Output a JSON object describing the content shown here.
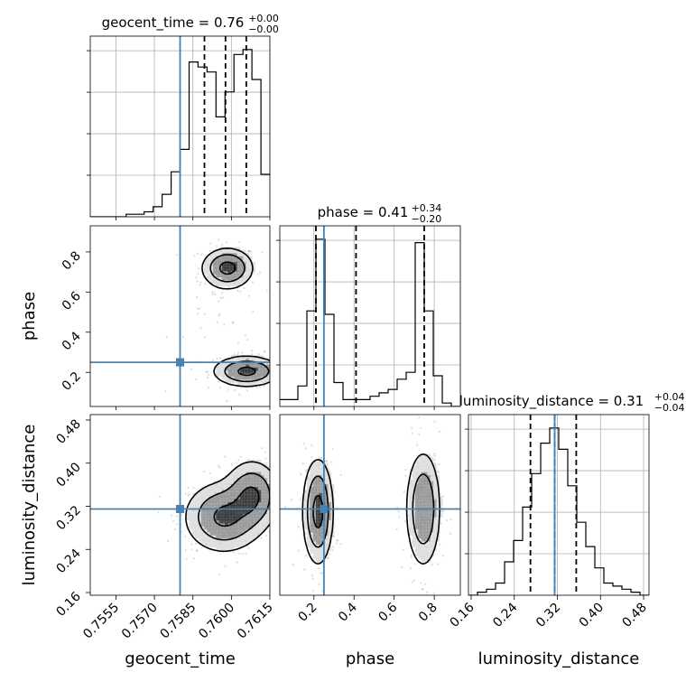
{
  "chart_data": {
    "type": "corner",
    "truth_color": "#4682b4",
    "contour_color": "#000000",
    "scatter_color": "#808080",
    "parameters": [
      {
        "name": "geocent_time",
        "range": [
          0.7545,
          0.7615
        ],
        "ticks": [
          "0.7555",
          "0.7570",
          "0.7585",
          "0.7600",
          "0.7615"
        ],
        "tick_values": [
          0.7555,
          0.757,
          0.7585,
          0.76,
          0.7615
        ],
        "truth": 0.758,
        "quantiles": [
          0.75895,
          0.75977,
          0.76058
        ]
      },
      {
        "name": "phase",
        "range": [
          0.03,
          0.93
        ],
        "ticks": [
          "0.2",
          "0.4",
          "0.6",
          "0.8"
        ],
        "tick_values": [
          0.2,
          0.4,
          0.6,
          0.8
        ],
        "truth": 0.25,
        "quantiles": [
          0.21,
          0.41,
          0.75
        ]
      },
      {
        "name": "luminosity_distance",
        "range": [
          0.155,
          0.49
        ],
        "ticks": [
          "0.16",
          "0.24",
          "0.32",
          "0.40",
          "0.48"
        ],
        "tick_values": [
          0.16,
          0.24,
          0.32,
          0.4,
          0.48
        ],
        "truth": 0.315,
        "quantiles": [
          0.27,
          0.315,
          0.355
        ]
      }
    ],
    "titles": {
      "geocent_time": {
        "label": "geocent_time = 0.76",
        "plus": "+0.00",
        "minus": "−0.00"
      },
      "phase": {
        "label": "phase = 0.41",
        "plus": "+0.34",
        "minus": "−0.20"
      },
      "luminosity_distance": {
        "label": "luminosity_distance = 0.31",
        "plus": "+0.04",
        "minus": "−0.04"
      }
    },
    "histograms": {
      "geocent_time": {
        "edges": [
          0.7545,
          0.75485,
          0.7552,
          0.75555,
          0.7559,
          0.75625,
          0.7566,
          0.75695,
          0.7573,
          0.75765,
          0.758,
          0.75835,
          0.7587,
          0.75905,
          0.7594,
          0.75975,
          0.7601,
          0.76045,
          0.7608,
          0.76115,
          0.7615
        ],
        "counts": [
          0,
          0,
          0,
          0,
          1,
          1,
          2,
          4,
          9,
          18,
          27,
          62,
          60,
          58,
          40,
          50,
          65,
          67,
          55,
          17
        ]
      },
      "phase": {
        "edges": [
          0.03,
          0.075,
          0.12,
          0.165,
          0.21,
          0.255,
          0.3,
          0.345,
          0.39,
          0.435,
          0.48,
          0.525,
          0.57,
          0.615,
          0.66,
          0.705,
          0.75,
          0.795,
          0.84,
          0.885,
          0.93
        ],
        "counts": [
          2,
          2,
          6,
          28,
          49,
          27,
          7,
          2,
          2,
          2,
          3,
          4,
          5,
          8,
          10,
          48,
          28,
          9,
          1,
          0
        ]
      },
      "luminosity_distance": {
        "edges": [
          0.155,
          0.17175,
          0.1885,
          0.20525,
          0.222,
          0.23875,
          0.2555,
          0.27225,
          0.289,
          0.30575,
          0.3225,
          0.33925,
          0.356,
          0.37275,
          0.3895,
          0.40625,
          0.423,
          0.43975,
          0.4565,
          0.47325,
          0.49
        ],
        "counts": [
          0,
          1,
          2,
          4,
          11,
          18,
          29,
          40,
          50,
          55,
          48,
          36,
          24,
          16,
          9,
          4,
          3,
          2,
          1,
          0
        ]
      }
    },
    "densities": {
      "geocent_time__phase": {
        "clusters": [
          {
            "x": 0.75985,
            "y": 0.72,
            "sx": 0.00045,
            "sy": 0.045,
            "w": 0.5
          },
          {
            "x": 0.7606,
            "y": 0.205,
            "sx": 0.0006,
            "sy": 0.035,
            "w": 0.5
          },
          {
            "x": 0.7597,
            "y": 0.55,
            "sx": 0.0008,
            "sy": 0.14,
            "w": 0.1
          }
        ],
        "levels": [
          0.35,
          1.2,
          2.8
        ]
      },
      "geocent_time__luminosity_distance": {
        "clusters": [
          {
            "x": 0.7597,
            "y": 0.3,
            "sx": 0.0007,
            "sy": 0.03,
            "w": 0.6
          },
          {
            "x": 0.7608,
            "y": 0.34,
            "sx": 0.0005,
            "sy": 0.03,
            "w": 0.4
          }
        ],
        "levels": [
          0.35,
          1.2,
          2.8
        ]
      },
      "phase__luminosity_distance": {
        "clusters": [
          {
            "x": 0.22,
            "y": 0.31,
            "sx": 0.035,
            "sy": 0.045,
            "w": 0.5
          },
          {
            "x": 0.745,
            "y": 0.315,
            "sx": 0.04,
            "sy": 0.05,
            "w": 0.5
          }
        ],
        "levels": [
          0.35,
          1.2,
          2.8
        ]
      }
    }
  }
}
